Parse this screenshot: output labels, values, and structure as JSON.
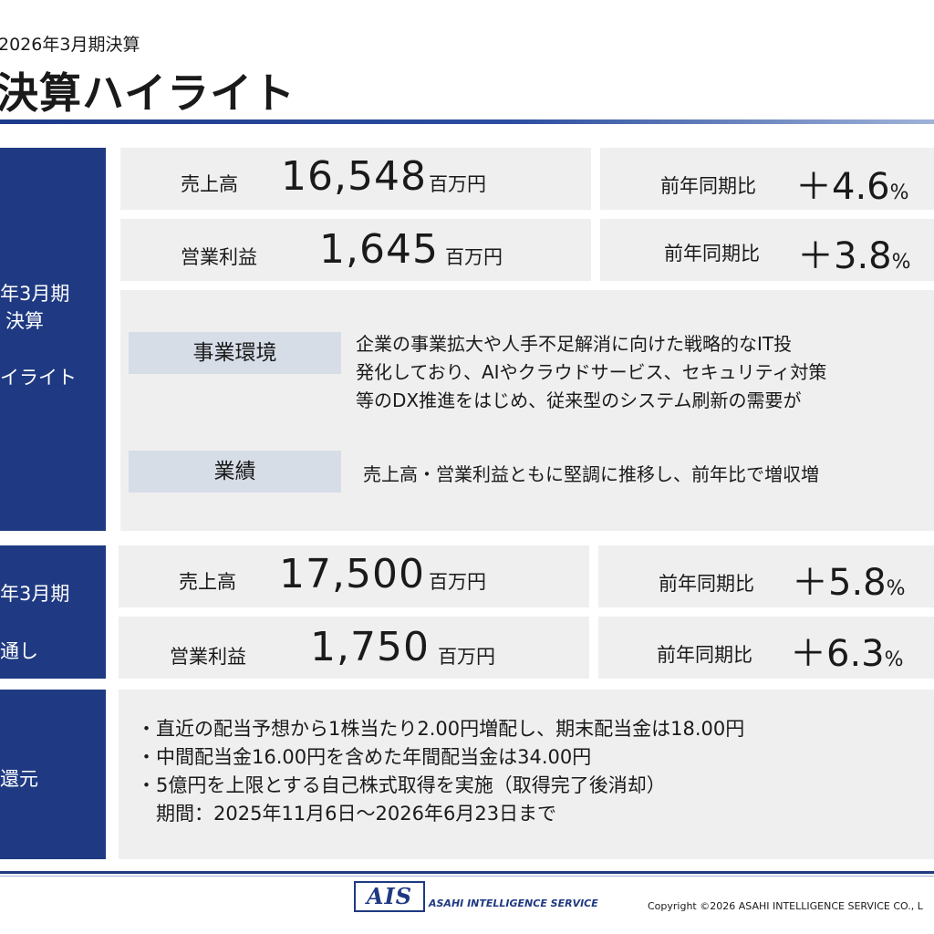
{
  "header": {
    "subtitle": "2026年3月期決算",
    "title": "決算ハイライト"
  },
  "fy2026": {
    "side_lines": [
      "年3月期",
      "決算",
      "イライト"
    ],
    "sales": {
      "label": "売上高",
      "value": "16,548",
      "unit": "百万円",
      "yoy_label": "前年同期比",
      "yoy_value": "＋4.6",
      "yoy_unit": "%"
    },
    "op": {
      "label": "営業利益",
      "value": "1,645",
      "unit": "百万円",
      "yoy_label": "前年同期比",
      "yoy_value": "＋3.8",
      "yoy_unit": "%"
    },
    "env": {
      "label": "事業環境",
      "lines": [
        "企業の事業拡大や人手不足解消に向けた戦略的なIT投",
        "発化しており、AIやクラウドサービス、セキュリティ対策",
        "等のDX推進をはじめ、従来型のシステム刷新の需要が"
      ]
    },
    "perf": {
      "label": "業績",
      "text": "売上高・営業利益ともに堅調に推移し、前年比で増収増"
    }
  },
  "fy2027": {
    "side_lines": [
      "年3月期",
      "通し"
    ],
    "sales": {
      "label": "売上高",
      "value": "17,500",
      "unit": "百万円",
      "yoy_label": "前年同期比",
      "yoy_value": "＋5.8",
      "yoy_unit": "%"
    },
    "op": {
      "label": "営業利益",
      "value": "1,750",
      "unit": "百万円",
      "yoy_label": "前年同期比",
      "yoy_value": "＋6.3",
      "yoy_unit": "%"
    }
  },
  "return": {
    "side_label": "還元",
    "lines": [
      "・直近の配当予想から1株当たり2.00円増配し、期末配当金は18.00円",
      "・中間配当金16.00円を含めた年間配当金は34.00円",
      "・5億円を上限とする自己株式取得を実施（取得完了後消却）",
      "　期間：2025年11月6日～2026年6月23日まで"
    ]
  },
  "footer": {
    "logo": "AIS",
    "company": "ASAHI INTELLIGENCE SERVICE",
    "copyright": "Copyright ©2026 ASAHI INTELLIGENCE SERVICE CO., L"
  },
  "colors": {
    "navy": "#1f3a82",
    "cell": "#efefef",
    "chip": "#d7dde7"
  }
}
